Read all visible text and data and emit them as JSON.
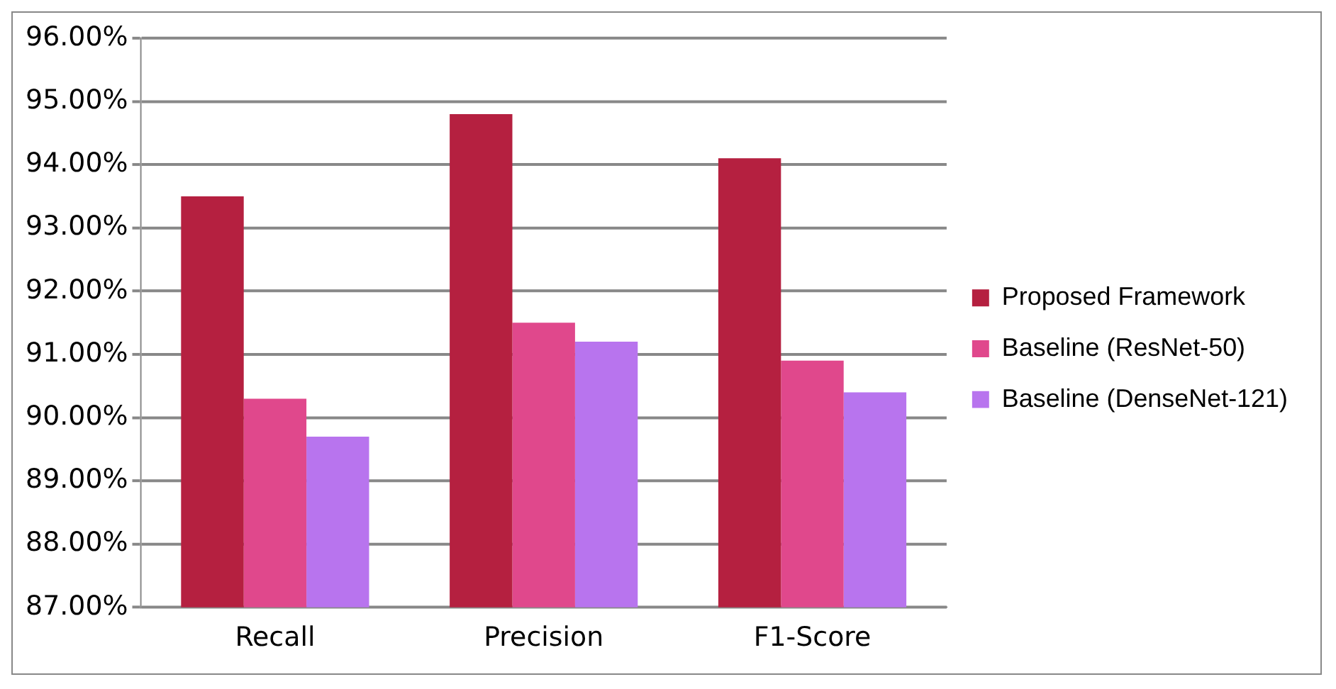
{
  "chart_data": {
    "type": "bar",
    "categories": [
      "Recall",
      "Precision",
      "F1-Score"
    ],
    "series": [
      {
        "name": "Proposed Framework",
        "color": "#b52040",
        "values": [
          93.5,
          94.8,
          94.1
        ]
      },
      {
        "name": "Baseline (ResNet-50)",
        "color": "#e0488c",
        "values": [
          90.3,
          91.5,
          90.9
        ]
      },
      {
        "name": "Baseline (DenseNet-121)",
        "color": "#b874ee",
        "values": [
          89.7,
          91.2,
          90.4
        ]
      }
    ],
    "ylim": [
      87,
      96
    ],
    "yticks": [
      {
        "value": 87,
        "label": "87.00%"
      },
      {
        "value": 88,
        "label": "88.00%"
      },
      {
        "value": 89,
        "label": "89.00%"
      },
      {
        "value": 90,
        "label": "90.00%"
      },
      {
        "value": 91,
        "label": "91.00%"
      },
      {
        "value": 92,
        "label": "92.00%"
      },
      {
        "value": 93,
        "label": "93.00%"
      },
      {
        "value": 94,
        "label": "94.00%"
      },
      {
        "value": 95,
        "label": "95.00%"
      },
      {
        "value": 96,
        "label": "96.00%"
      }
    ],
    "grid": "y",
    "legend": "right"
  }
}
